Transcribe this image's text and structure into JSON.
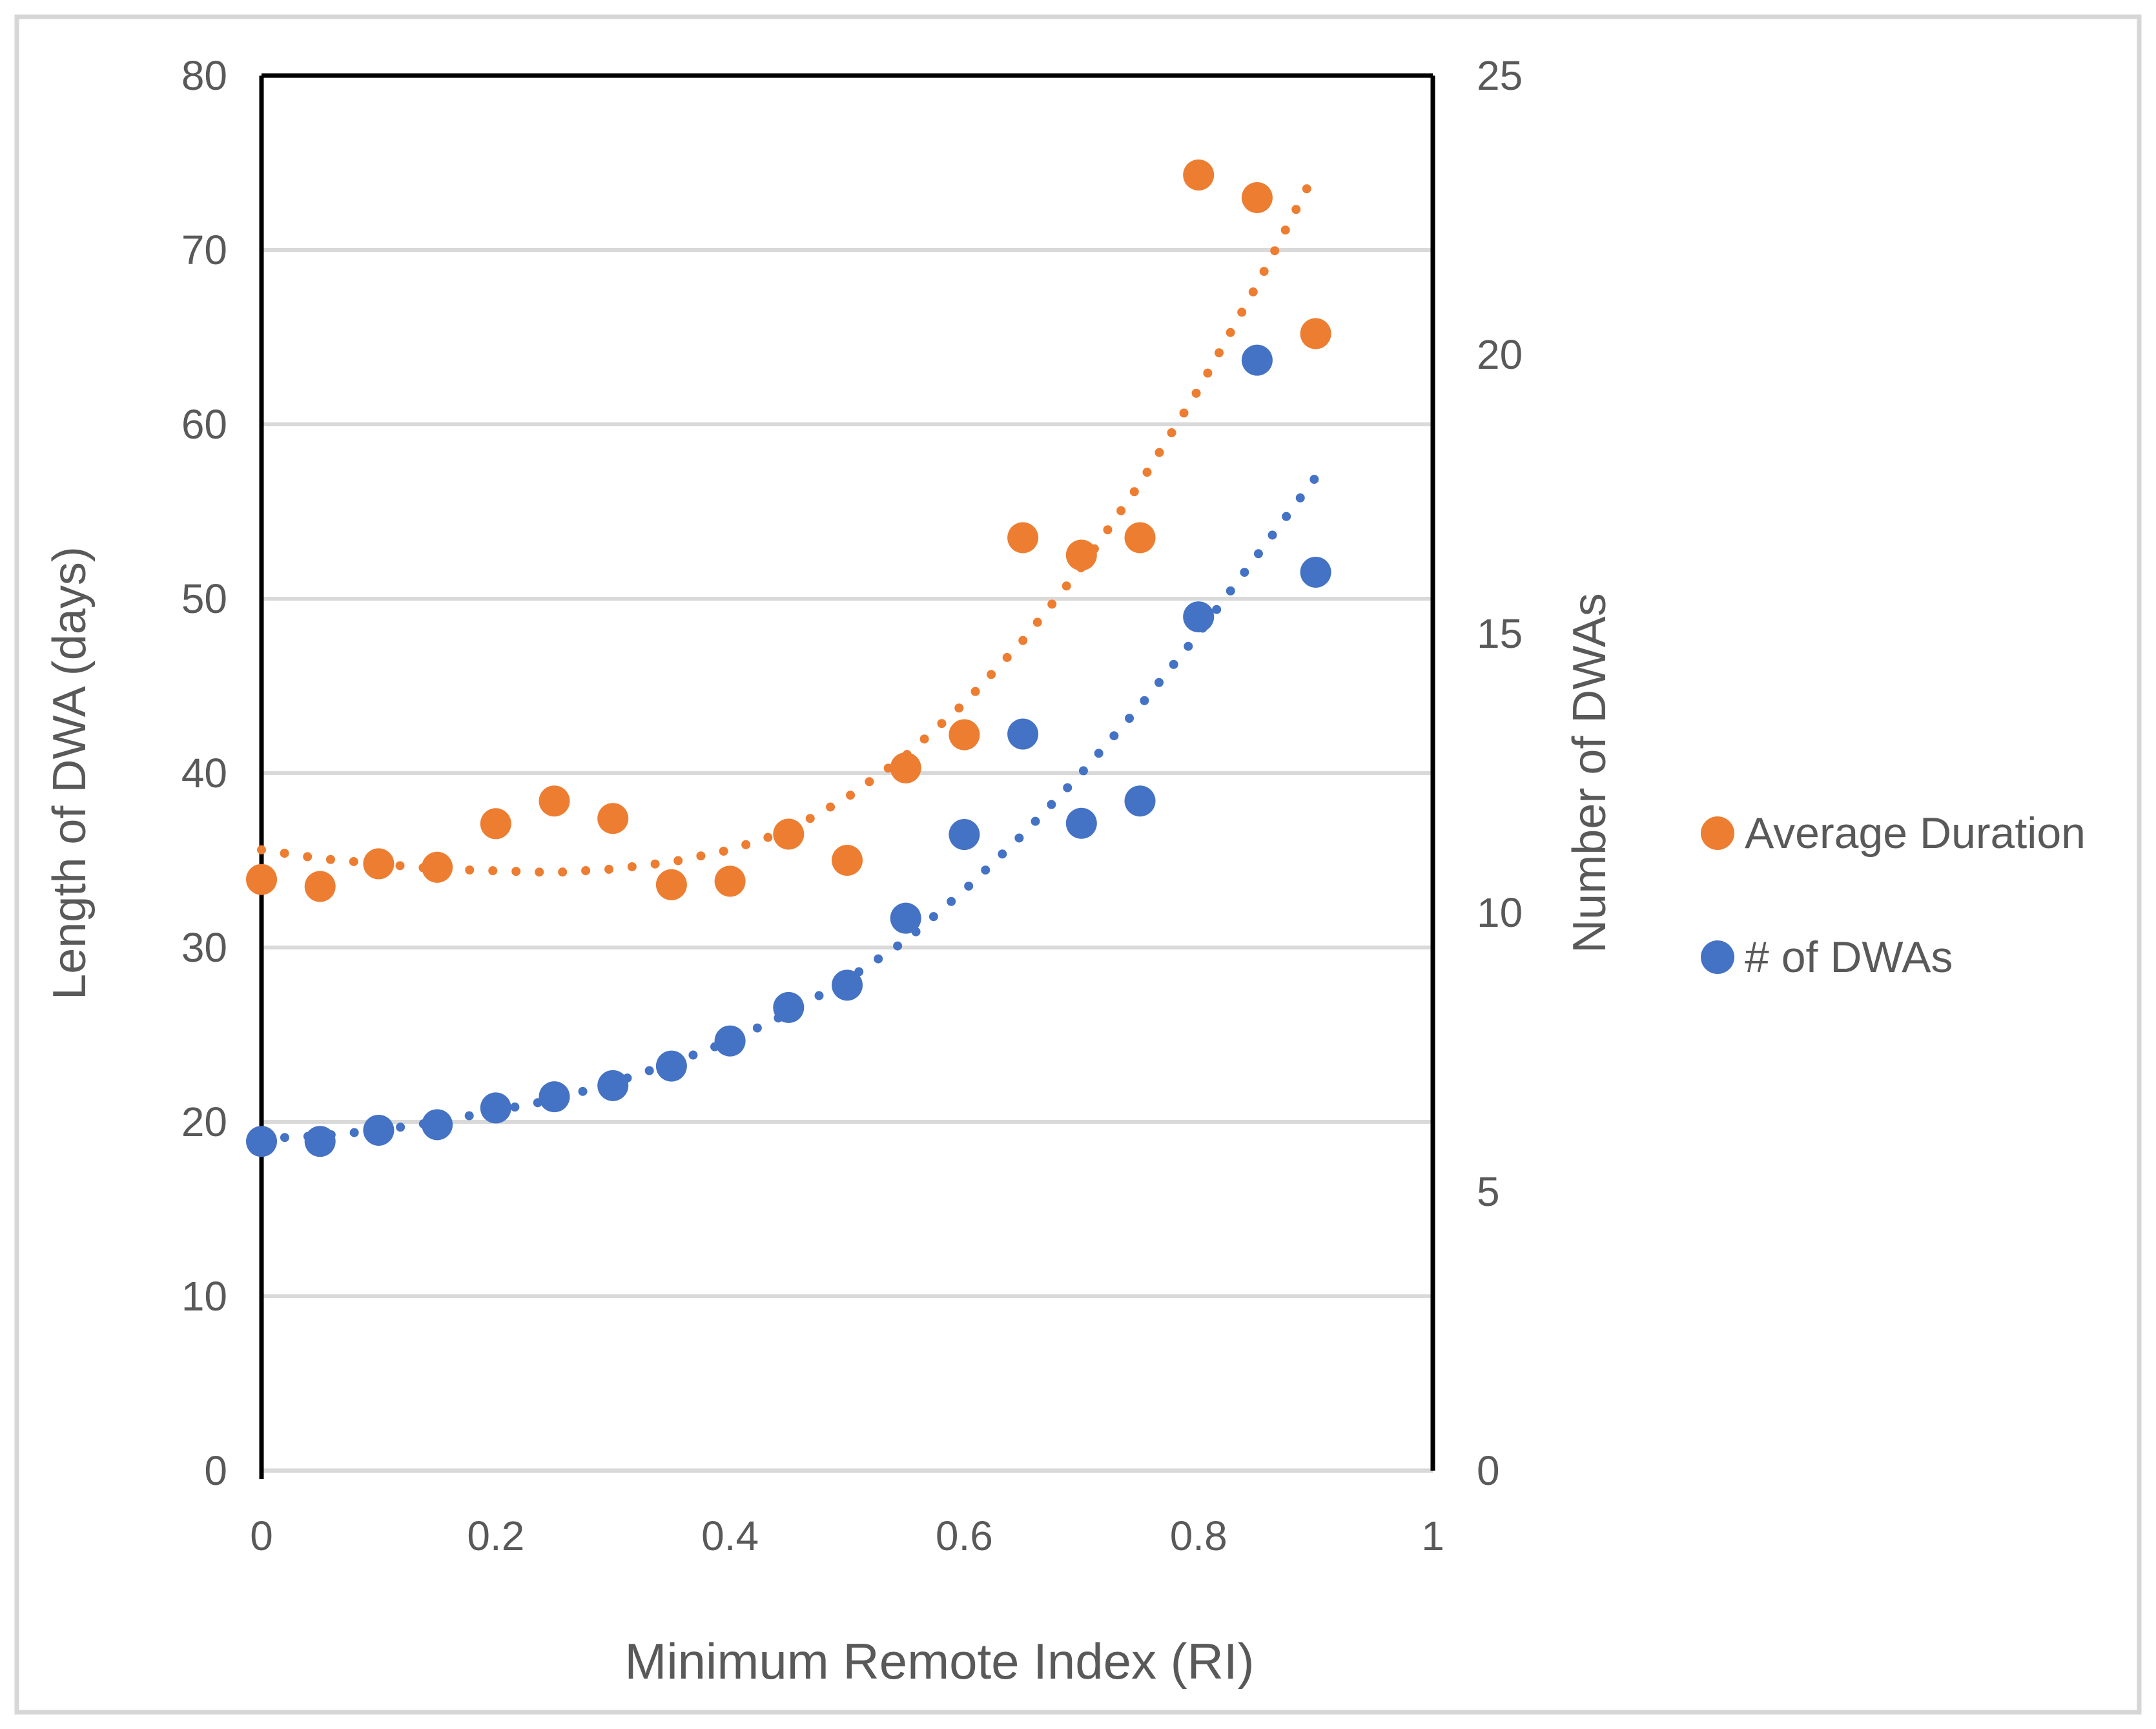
{
  "chart_data": {
    "type": "scatter",
    "x": [
      0,
      0.05,
      0.1,
      0.15,
      0.2,
      0.25,
      0.3,
      0.35,
      0.4,
      0.45,
      0.5,
      0.55,
      0.6,
      0.65,
      0.7,
      0.75,
      0.8,
      0.85,
      0.9
    ],
    "series": [
      {
        "name": "Average Duration",
        "axis": "left",
        "color": "#ED7D31",
        "values": [
          33.9,
          33.5,
          34.8,
          34.6,
          37.1,
          38.4,
          37.4,
          33.6,
          33.8,
          36.5,
          35.0,
          40.3,
          42.2,
          53.5,
          52.5,
          53.5,
          74.3,
          73.0,
          65.2
        ]
      },
      {
        "name": "# of DWAs",
        "axis": "right",
        "color": "#4472C4",
        "values": [
          5.9,
          5.9,
          6.1,
          6.2,
          6.5,
          6.7,
          6.9,
          7.25,
          7.7,
          8.3,
          8.7,
          9.9,
          11.4,
          13.2,
          11.6,
          12.0,
          15.3,
          19.9,
          16.1
        ]
      }
    ],
    "trendlines": [
      {
        "series": "Average Duration",
        "axis": "left",
        "color": "#ED7D31",
        "style": "dotted",
        "x": [
          0,
          0.05,
          0.1,
          0.15,
          0.2,
          0.25,
          0.3,
          0.35,
          0.4,
          0.45,
          0.5,
          0.55,
          0.6,
          0.65,
          0.7,
          0.75,
          0.8,
          0.85,
          0.9
        ],
        "values": [
          35.6,
          35.1,
          34.8,
          34.5,
          34.4,
          34.3,
          34.5,
          34.9,
          35.6,
          36.7,
          38.6,
          41.0,
          44.0,
          47.6,
          51.8,
          56.6,
          62.0,
          68.0,
          74.5
        ]
      },
      {
        "series": "# of DWAs",
        "axis": "right",
        "color": "#4472C4",
        "style": "dotted",
        "x": [
          0,
          0.05,
          0.1,
          0.15,
          0.2,
          0.25,
          0.3,
          0.35,
          0.4,
          0.45,
          0.5,
          0.55,
          0.6,
          0.65,
          0.7,
          0.75,
          0.8,
          0.85,
          0.9
        ],
        "values": [
          5.95,
          6.0,
          6.1,
          6.25,
          6.45,
          6.65,
          6.95,
          7.3,
          7.7,
          8.2,
          8.8,
          9.5,
          10.4,
          11.4,
          12.5,
          13.7,
          15.0,
          16.4,
          17.8
        ]
      }
    ],
    "x_axis": {
      "label": "Minimum Remote Index (RI)",
      "min": 0,
      "max": 1,
      "ticks": [
        "0",
        "0.2",
        "0.4",
        "0.6",
        "0.8",
        "1"
      ],
      "tick_values": [
        0,
        0.2,
        0.4,
        0.6,
        0.8,
        1
      ]
    },
    "y_left": {
      "label": "Length of DWA (days)",
      "min": 0,
      "max": 80,
      "ticks": [
        "0",
        "10",
        "20",
        "30",
        "40",
        "50",
        "60",
        "70",
        "80"
      ],
      "tick_values": [
        0,
        10,
        20,
        30,
        40,
        50,
        60,
        70,
        80
      ]
    },
    "y_right": {
      "label": "Number of DWAs",
      "min": 0,
      "max": 25,
      "ticks": [
        "0",
        "5",
        "10",
        "15",
        "20",
        "25"
      ],
      "tick_values": [
        0,
        5,
        10,
        15,
        20,
        25
      ]
    },
    "legend": {
      "position": "right",
      "entries": [
        {
          "label": "Average Duration",
          "color": "#ED7D31"
        },
        {
          "label": "# of DWAs",
          "color": "#4472C4"
        }
      ]
    },
    "grid": true,
    "colors": {
      "grid": "#D9D9D9",
      "axis_line": "#000000",
      "text": "#595959",
      "background": "#FFFFFF",
      "border": "#D6D6D6"
    }
  }
}
